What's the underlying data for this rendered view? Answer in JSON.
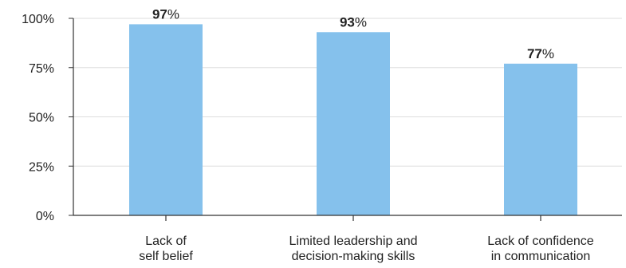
{
  "chart_data": {
    "type": "bar",
    "categories": [
      [
        "Lack of",
        "self belief"
      ],
      [
        "Limited leadership and",
        "decision-making skills"
      ],
      [
        "Lack of confidence",
        "in communication"
      ]
    ],
    "values": [
      97,
      93,
      77
    ],
    "value_suffix": "%",
    "ylim": [
      0,
      100
    ],
    "yticks": [
      0,
      25,
      50,
      75,
      100
    ],
    "ytick_labels": [
      "0%",
      "25%",
      "50%",
      "75%",
      "100%"
    ],
    "grid": true,
    "colors": {
      "bar": "#85C1EC",
      "axis": "#333333",
      "grid": "#DDDDDD"
    },
    "title": "",
    "xlabel": "",
    "ylabel": ""
  }
}
